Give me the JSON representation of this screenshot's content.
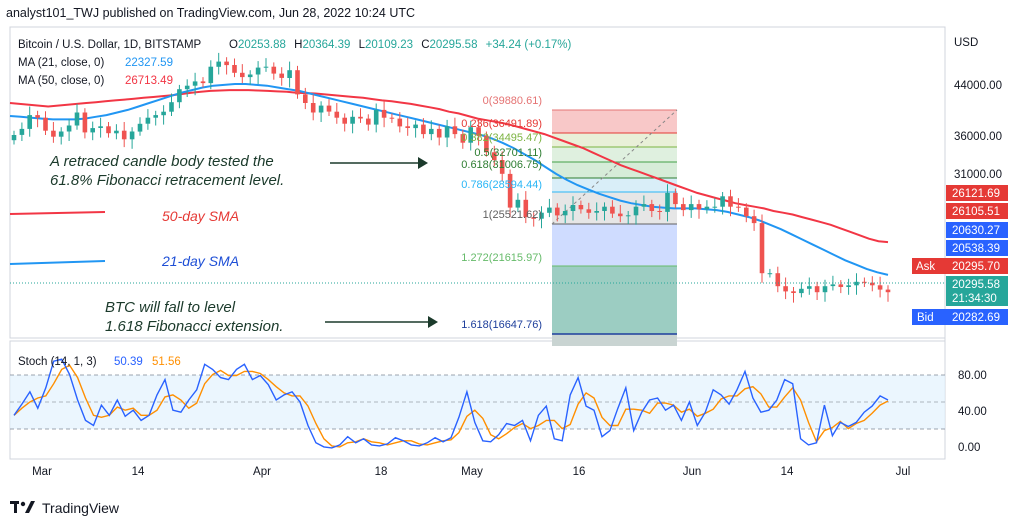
{
  "header": {
    "title": "analyst101_TWJ published on TradingView.com, Jun 28, 2022 10:24 UTC"
  },
  "footer": {
    "brand": "TradingView"
  },
  "legend": {
    "symbol": "Bitcoin / U.S. Dollar, 1D, BITSTAMP",
    "ohlc": [
      {
        "k": "O",
        "v": "20253.88"
      },
      {
        "k": "H",
        "v": "20364.39"
      },
      {
        "k": "L",
        "v": "20109.23"
      },
      {
        "k": "C",
        "v": "20295.58"
      }
    ],
    "change": "+34.24 (+0.17%)",
    "ma21_label": "MA (21, close, 0)",
    "ma21_value": "22327.59",
    "ma50_label": "MA (50, close, 0)",
    "ma50_value": "26713.49",
    "stoch_label": "Stoch (14, 1, 3)",
    "stoch_k": "50.39",
    "stoch_d": "51.56"
  },
  "price_axis": {
    "unit": "USD",
    "ticks": [
      "44000.00",
      "36000.00",
      "31000.00"
    ]
  },
  "price_tags": [
    {
      "text": "26121.69",
      "color": "#e53935"
    },
    {
      "text": "26105.51",
      "color": "#e53935"
    },
    {
      "text": "20630.27",
      "color": "#2962ff"
    },
    {
      "text": "20538.39",
      "color": "#2962ff"
    },
    {
      "text": "20295.70",
      "color": "#e53935",
      "label": "Ask"
    },
    {
      "text": "20295.58",
      "color": "#26a69a"
    },
    {
      "text": "21:34:30",
      "color": "#26a69a"
    },
    {
      "text": "20282.69",
      "color": "#2962ff",
      "label": "Bid"
    }
  ],
  "stoch_axis": {
    "ticks": [
      "80.00",
      "40.00",
      "0.00"
    ]
  },
  "time_axis": [
    "Mar",
    "14",
    "Apr",
    "18",
    "May",
    "16",
    "Jun",
    "14",
    "Jul"
  ],
  "fib_levels": [
    {
      "label": "0(39880.61)",
      "color": "#e57373"
    },
    {
      "label": "0.236(36491.89)",
      "color": "#e53935"
    },
    {
      "label": "0.382(34495.47)",
      "color": "#7cb342"
    },
    {
      "label": "0.5(32701.11)",
      "color": "#2e7d32"
    },
    {
      "label": "0.618(31006.75)",
      "color": "#2e7d32"
    },
    {
      "label": "0.786(28594.44)",
      "color": "#29b6f6"
    },
    {
      "label": "1(25521.62)",
      "color": "#616161"
    },
    {
      "label": "1.272(21615.97)",
      "color": "#66bb6a"
    },
    {
      "label": "1.618(16647.76)",
      "color": "#1e3f9c"
    }
  ],
  "annotations": {
    "fib_note_1": "A retraced candle body tested the",
    "fib_note_2": "61.8% Fibonacci retracement level.",
    "sma50": "50-day SMA",
    "sma21": "21-day SMA",
    "ext_note_1": "BTC will fall to level",
    "ext_note_2": "1.618 Fibonacci extension."
  },
  "colors": {
    "ma50": "#f23645",
    "ma21": "#2196f3",
    "up": "#26a69a",
    "down": "#ef5350",
    "stoch_k": "#2962ff",
    "stoch_d": "#ff8f00",
    "note": "#1b3a2b"
  },
  "chart_data": {
    "type": "candlestick",
    "symbol": "Bitcoin / U.S. Dollar, 1D, BITSTAMP",
    "x_labels": [
      "Mar",
      "14",
      "Apr",
      "18",
      "May",
      "16",
      "Jun",
      "14",
      "Jul"
    ],
    "y_ticks": [
      44000,
      36000,
      31000
    ],
    "last": {
      "open": 20253.88,
      "high": 20364.39,
      "low": 20109.23,
      "close": 20295.58
    },
    "closes": [
      38500,
      39200,
      40800,
      40500,
      39000,
      38300,
      38900,
      39600,
      41100,
      38800,
      39300,
      39500,
      38700,
      39000,
      38000,
      38900,
      39800,
      40500,
      40800,
      41200,
      42300,
      43800,
      44200,
      44700,
      44500,
      46400,
      47000,
      46600,
      45700,
      45200,
      45500,
      46300,
      46400,
      45600,
      45100,
      46000,
      43200,
      42200,
      41100,
      41900,
      41200,
      40500,
      39800,
      40600,
      40400,
      39700,
      41400,
      40500,
      40400,
      39500,
      39300,
      39700,
      38600,
      39200,
      38200,
      39500,
      38600,
      37600,
      39400,
      38400,
      36500,
      35600,
      34000,
      30100,
      31000,
      29000,
      28800,
      29500,
      30100,
      29200,
      29700,
      30400,
      29900,
      29500,
      29700,
      30200,
      29400,
      29100,
      29200,
      30200,
      30500,
      29700,
      29600,
      31800,
      30500,
      29800,
      30500,
      29900,
      30200,
      30200,
      31400,
      30200,
      30100,
      29100,
      28300,
      22500,
      22500,
      21000,
      20400,
      20200,
      20700,
      21000,
      20300,
      21000,
      21200,
      20900,
      21100,
      21500,
      21400,
      21100,
      20600,
      20300
    ],
    "ma50": [
      42200,
      42100,
      42000,
      41900,
      41800,
      41900,
      42000,
      42100,
      42200,
      42300,
      42400,
      42500,
      42600,
      42700,
      42800,
      42900,
      43000,
      43100,
      43250,
      43400,
      43500,
      43600,
      43650,
      43700,
      43700,
      43700,
      43650,
      43600,
      43550,
      43500,
      43400,
      43350,
      43300,
      43200,
      43100,
      43000,
      42900,
      42800,
      42650,
      42500,
      42400,
      42250,
      42100,
      41900,
      41700,
      41500,
      41200,
      41000,
      40700,
      40400,
      40200,
      40000,
      39800,
      39500,
      39200,
      38900,
      38600,
      38200,
      37800,
      37400,
      37000,
      36500,
      36000,
      35500,
      35000,
      34600,
      34200,
      33800,
      33400,
      33000,
      32600,
      32200,
      31800,
      31500,
      31200,
      30900,
      30600,
      30400,
      30200,
      30000,
      29700,
      29500,
      29300,
      29000,
      28700,
      28400,
      28100,
      27700,
      27300,
      26900,
      26500,
      26200,
      26100
    ],
    "ma21": [
      40700,
      40600,
      40500,
      40400,
      40300,
      40300,
      40300,
      40400,
      40600,
      40800,
      41100,
      41400,
      41800,
      42200,
      42600,
      43000,
      43400,
      43700,
      44000,
      44200,
      44300,
      44400,
      44400,
      44300,
      44200,
      44000,
      43800,
      43600,
      43300,
      43000,
      42700,
      42400,
      42100,
      41800,
      41500,
      41200,
      40900,
      40600,
      40300,
      40000,
      39700,
      39400,
      39100,
      38800,
      38500,
      38100,
      37600,
      37000,
      36300,
      35600,
      34800,
      34000,
      33300,
      32700,
      32200,
      31700,
      31300,
      30900,
      30600,
      30400,
      30200,
      30100,
      30000,
      30000,
      30000,
      29900,
      29800,
      29600,
      29300,
      29000,
      28600,
      28100,
      27600,
      27000,
      26400,
      25800,
      25200,
      24600,
      24000,
      23500,
      23000,
      22600,
      22300
    ],
    "stoch_k": [
      35,
      46,
      58,
      42,
      62,
      88,
      90,
      75,
      50,
      30,
      25,
      45,
      35,
      50,
      34,
      40,
      30,
      35,
      55,
      70,
      40,
      38,
      50,
      60,
      85,
      80,
      72,
      70,
      80,
      85,
      70,
      74,
      65,
      50,
      55,
      58,
      48,
      25,
      8,
      4,
      3,
      6,
      14,
      8,
      12,
      6,
      5,
      7,
      13,
      10,
      6,
      5,
      8,
      13,
      9,
      13,
      33,
      58,
      28,
      10,
      9,
      16,
      27,
      25,
      30,
      10,
      35,
      44,
      12,
      10,
      55,
      72,
      44,
      40,
      14,
      20,
      42,
      62,
      20,
      38,
      50,
      52,
      40,
      45,
      30,
      48,
      25,
      38,
      60,
      55,
      46,
      60,
      78,
      52,
      38,
      40,
      50,
      70,
      66,
      12,
      6,
      8,
      45,
      15,
      28,
      24,
      28,
      38,
      44,
      54,
      50
    ],
    "stoch_d": [
      35,
      42,
      48,
      52,
      54,
      66,
      80,
      84,
      72,
      52,
      35,
      33,
      35,
      43,
      40,
      42,
      35,
      35,
      40,
      53,
      55,
      50,
      42,
      47,
      66,
      75,
      79,
      74,
      74,
      78,
      78,
      76,
      70,
      63,
      57,
      54,
      54,
      44,
      27,
      12,
      5,
      4,
      8,
      9,
      12,
      9,
      8,
      6,
      8,
      10,
      10,
      7,
      6,
      8,
      10,
      11,
      18,
      34,
      40,
      32,
      16,
      12,
      17,
      23,
      27,
      22,
      25,
      30,
      30,
      22,
      26,
      46,
      57,
      52,
      33,
      25,
      25,
      41,
      41,
      40,
      37,
      47,
      47,
      45,
      38,
      41,
      34,
      37,
      41,
      51,
      54,
      54,
      61,
      63,
      56,
      43,
      43,
      53,
      62,
      50,
      28,
      9,
      20,
      23,
      29,
      22,
      27,
      30,
      37,
      45,
      49
    ]
  }
}
